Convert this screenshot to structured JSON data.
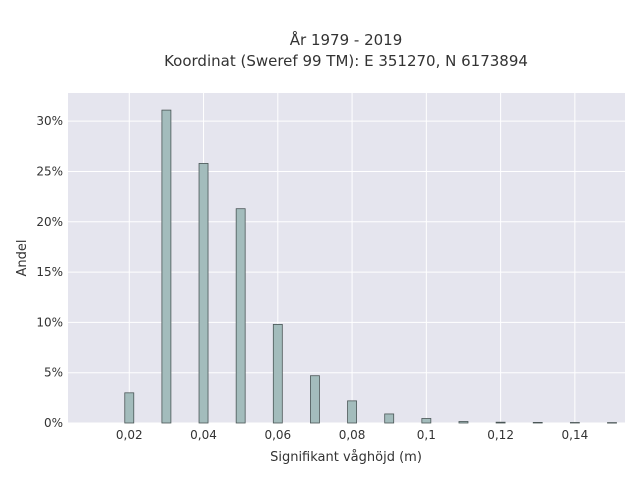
{
  "chart_data": {
    "type": "bar",
    "title": "År 1979 - 2019",
    "subtitle": "Koordinat (Sweref 99 TM): E 351270, N 6173894",
    "xlabel": "Signifikant våghöjd (m)",
    "ylabel": "Andel",
    "x": [
      0.02,
      0.03,
      0.04,
      0.05,
      0.06,
      0.07,
      0.08,
      0.09,
      0.1,
      0.11,
      0.12,
      0.13,
      0.14,
      0.15
    ],
    "values": [
      3.0,
      31.1,
      25.8,
      21.3,
      9.8,
      4.7,
      2.2,
      0.9,
      0.45,
      0.15,
      0.08,
      0.06,
      0.05,
      0.04
    ],
    "xlim": [
      0.0035,
      0.1535
    ],
    "ylim": [
      0,
      32.8
    ],
    "xticks": [
      0.02,
      0.04,
      0.06,
      0.08,
      0.1,
      0.12,
      0.14
    ],
    "xtick_labels": [
      "0,02",
      "0,04",
      "0,06",
      "0,08",
      "0,1",
      "0,12",
      "0,14"
    ],
    "yticks": [
      0,
      5,
      10,
      15,
      20,
      25,
      30
    ],
    "ytick_labels": [
      "0%",
      "5%",
      "10%",
      "15%",
      "20%",
      "25%",
      "30%"
    ],
    "grid": true,
    "colors": {
      "bar_fill": "#a3bcbc",
      "bar_stroke": "#4a5656",
      "plot_bg": "#e5e5ee",
      "grid": "#ffffff"
    }
  }
}
